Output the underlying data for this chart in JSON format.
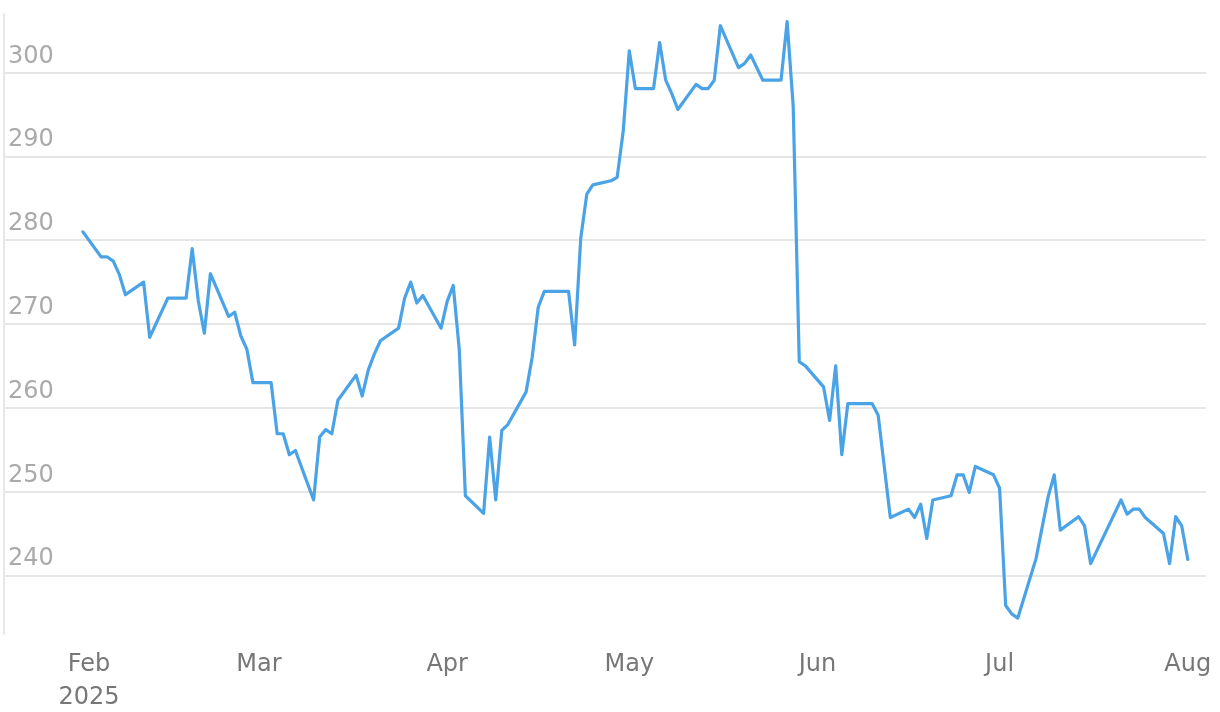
{
  "chart_data": {
    "type": "line",
    "xlim": [
      "2025-01-18",
      "2025-08-04"
    ],
    "ylim": [
      233,
      307
    ],
    "xticks": [
      {
        "value": "2025-02-01",
        "label": "Feb\n2025"
      },
      {
        "value": "2025-03-01",
        "label": "Mar"
      },
      {
        "value": "2025-04-01",
        "label": "Apr"
      },
      {
        "value": "2025-05-01",
        "label": "May"
      },
      {
        "value": "2025-06-01",
        "label": "Jun"
      },
      {
        "value": "2025-07-01",
        "label": "Jul"
      },
      {
        "value": "2025-08-01",
        "label": "Aug"
      }
    ],
    "yticks": [
      240,
      250,
      260,
      270,
      280,
      290,
      300
    ],
    "grid": "y",
    "marker": "none",
    "line_style": "solid",
    "x": [
      "2025-01-31",
      "2025-02-03",
      "2025-02-04",
      "2025-02-05",
      "2025-02-06",
      "2025-02-07",
      "2025-02-10",
      "2025-02-11",
      "2025-02-14",
      "2025-02-17",
      "2025-02-18",
      "2025-02-19",
      "2025-02-20",
      "2025-02-21",
      "2025-02-24",
      "2025-02-25",
      "2025-02-26",
      "2025-02-27",
      "2025-02-28",
      "2025-03-03",
      "2025-03-04",
      "2025-03-05",
      "2025-03-06",
      "2025-03-07",
      "2025-03-10",
      "2025-03-11",
      "2025-03-12",
      "2025-03-13",
      "2025-03-14",
      "2025-03-17",
      "2025-03-18",
      "2025-03-19",
      "2025-03-20",
      "2025-03-21",
      "2025-03-24",
      "2025-03-25",
      "2025-03-26",
      "2025-03-27",
      "2025-03-28",
      "2025-03-31",
      "2025-04-01",
      "2025-04-02",
      "2025-04-03",
      "2025-04-04",
      "2025-04-07",
      "2025-04-08",
      "2025-04-09",
      "2025-04-10",
      "2025-04-11",
      "2025-04-14",
      "2025-04-15",
      "2025-04-16",
      "2025-04-17",
      "2025-04-20",
      "2025-04-21",
      "2025-04-22",
      "2025-04-23",
      "2025-04-24",
      "2025-04-25",
      "2025-04-28",
      "2025-04-29",
      "2025-04-30",
      "2025-05-01",
      "2025-05-02",
      "2025-05-05",
      "2025-05-06",
      "2025-05-07",
      "2025-05-08",
      "2025-05-09",
      "2025-05-12",
      "2025-05-13",
      "2025-05-14",
      "2025-05-15",
      "2025-05-16",
      "2025-05-19",
      "2025-05-20",
      "2025-05-21",
      "2025-05-23",
      "2025-05-26",
      "2025-05-27",
      "2025-05-28",
      "2025-05-29",
      "2025-05-30",
      "2025-06-02",
      "2025-06-03",
      "2025-06-04",
      "2025-06-05",
      "2025-06-06",
      "2025-06-10",
      "2025-06-11",
      "2025-06-13",
      "2025-06-16",
      "2025-06-17",
      "2025-06-18",
      "2025-06-19",
      "2025-06-20",
      "2025-06-23",
      "2025-06-24",
      "2025-06-25",
      "2025-06-26",
      "2025-06-27",
      "2025-06-30",
      "2025-07-01",
      "2025-07-02",
      "2025-07-03",
      "2025-07-04",
      "2025-07-07",
      "2025-07-09",
      "2025-07-10",
      "2025-07-11",
      "2025-07-14",
      "2025-07-15",
      "2025-07-16",
      "2025-07-21",
      "2025-07-22",
      "2025-07-23",
      "2025-07-24",
      "2025-07-25",
      "2025-07-28",
      "2025-07-29",
      "2025-07-30",
      "2025-07-31",
      "2025-08-01"
    ],
    "series": [
      {
        "color": "#4aa3e6",
        "values": [
          281.0,
          278.0,
          278.0,
          277.5,
          275.9,
          273.5,
          275.0,
          268.4,
          273.1,
          273.1,
          279.0,
          272.8,
          268.9,
          276.0,
          270.9,
          271.4,
          268.6,
          267.0,
          263.0,
          263.0,
          256.9,
          256.9,
          254.4,
          254.9,
          249.0,
          256.5,
          257.4,
          256.9,
          260.9,
          263.9,
          261.4,
          264.5,
          266.4,
          268.0,
          269.5,
          273.1,
          275.0,
          272.5,
          273.4,
          269.5,
          272.7,
          274.6,
          266.9,
          249.5,
          247.4,
          256.5,
          249.0,
          257.3,
          258.0,
          261.9,
          266.0,
          272.0,
          273.9,
          273.9,
          273.9,
          267.5,
          280.2,
          285.5,
          286.6,
          287.1,
          287.5,
          293.0,
          302.6,
          298.1,
          298.1,
          303.6,
          299.1,
          297.5,
          295.6,
          298.6,
          298.1,
          298.1,
          299.1,
          305.6,
          300.6,
          301.1,
          302.1,
          299.1,
          299.1,
          306.1,
          296.0,
          265.5,
          265.0,
          262.5,
          258.5,
          265.0,
          254.4,
          260.5,
          260.5,
          259.1,
          246.9,
          247.9,
          246.9,
          248.5,
          244.4,
          249.0,
          249.5,
          252.0,
          252.0,
          249.9,
          253.0,
          252.0,
          250.4,
          236.4,
          235.4,
          234.9,
          242.0,
          249.4,
          252.0,
          245.4,
          247.0,
          245.9,
          241.4,
          249.0,
          247.3,
          247.9,
          247.9,
          246.9,
          245.0,
          241.4,
          247.0,
          245.9,
          241.9
        ]
      }
    ]
  }
}
